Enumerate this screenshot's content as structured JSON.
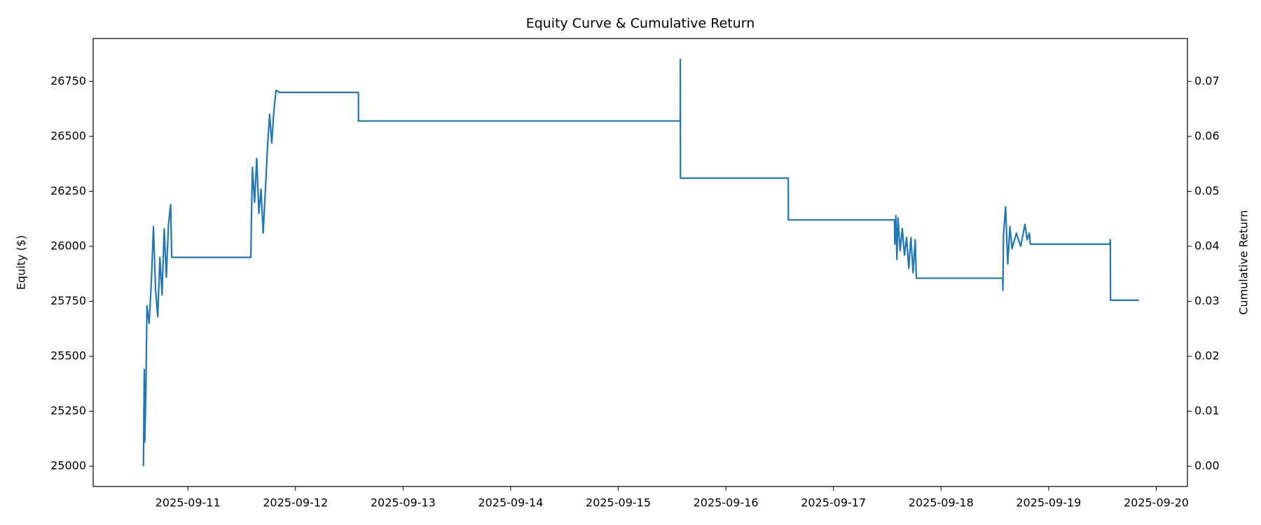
{
  "chart_data": {
    "type": "line",
    "title": "Equity Curve & Cumulative Return",
    "y_label": "Equity ($)",
    "y_label_color": "blue",
    "y2_label": "Cumulative Return",
    "y2_label_color": "green",
    "color": "#1f77b4",
    "x": [
      10.587,
      10.595,
      10.6,
      10.61,
      10.62,
      10.64,
      10.66,
      10.68,
      10.7,
      10.72,
      10.74,
      10.76,
      10.78,
      10.8,
      10.82,
      10.84,
      10.85,
      11.586,
      11.59,
      11.6,
      11.62,
      11.64,
      11.66,
      11.68,
      11.7,
      11.72,
      11.74,
      11.76,
      11.78,
      11.8,
      11.82,
      11.85,
      12.585,
      12.586,
      15.576,
      15.577,
      15.578,
      16.58,
      16.581,
      17.567,
      17.57,
      17.58,
      17.59,
      17.6,
      17.62,
      17.64,
      17.66,
      17.68,
      17.7,
      17.72,
      17.74,
      17.76,
      17.77,
      18.573,
      18.575,
      18.58,
      18.6,
      18.62,
      18.64,
      18.66,
      18.7,
      18.74,
      18.78,
      18.8,
      18.82,
      18.83,
      19.572,
      19.573,
      19.575,
      19.84
    ],
    "values": [
      25000,
      25440,
      25110,
      25350,
      25730,
      25650,
      25830,
      26090,
      25800,
      25680,
      25950,
      25780,
      26080,
      25860,
      26100,
      26190,
      25950,
      25950,
      26100,
      26360,
      26200,
      26400,
      26150,
      26260,
      26060,
      26250,
      26450,
      26600,
      26470,
      26620,
      26710,
      26700,
      26700,
      26570,
      26570,
      26850,
      26310,
      26310,
      26120,
      26120,
      26010,
      26140,
      25940,
      26130,
      25980,
      26080,
      25960,
      26040,
      25900,
      26040,
      25880,
      26030,
      25855,
      25855,
      25800,
      26050,
      26180,
      25920,
      26090,
      25990,
      26060,
      26000,
      26100,
      26030,
      26060,
      26010,
      26010,
      26030,
      25755,
      25755
    ],
    "xlim": [
      10.12,
      20.29
    ],
    "xticks": [
      {
        "value": 11,
        "label": "2025-09-11"
      },
      {
        "value": 12,
        "label": "2025-09-12"
      },
      {
        "value": 13,
        "label": "2025-09-13"
      },
      {
        "value": 14,
        "label": "2025-09-14"
      },
      {
        "value": 15,
        "label": "2025-09-15"
      },
      {
        "value": 16,
        "label": "2025-09-16"
      },
      {
        "value": 17,
        "label": "2025-09-17"
      },
      {
        "value": 18,
        "label": "2025-09-18"
      },
      {
        "value": 19,
        "label": "2025-09-19"
      },
      {
        "value": 20,
        "label": "2025-09-20"
      }
    ],
    "ylim": [
      24908,
      26945
    ],
    "yticks": [
      25000,
      25250,
      25500,
      25750,
      26000,
      26250,
      26500,
      26750
    ],
    "y2lim": [
      -0.00368,
      0.0778
    ],
    "y2ticks": [
      {
        "value": 0,
        "label": "0.00"
      },
      {
        "value": 0.01,
        "label": "0.01"
      },
      {
        "value": 0.02,
        "label": "0.02"
      },
      {
        "value": 0.03,
        "label": "0.03"
      },
      {
        "value": 0.04,
        "label": "0.04"
      },
      {
        "value": 0.05,
        "label": "0.05"
      },
      {
        "value": 0.06,
        "label": "0.06"
      },
      {
        "value": 0.07,
        "label": "0.07"
      }
    ]
  }
}
